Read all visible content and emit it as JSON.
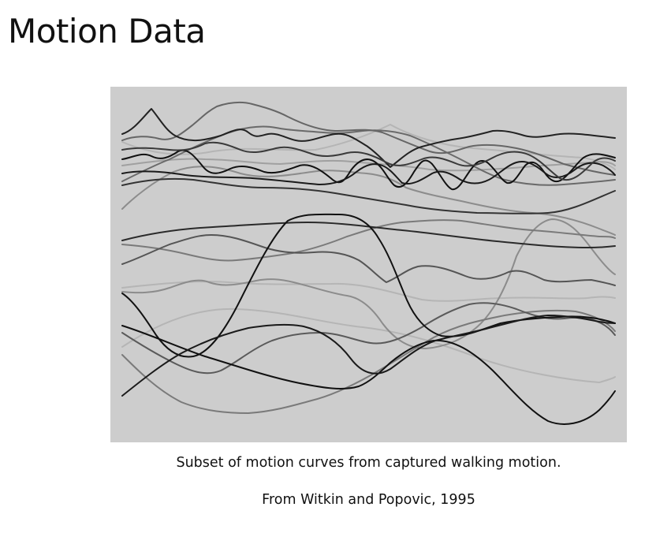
{
  "slide": {
    "title": "Motion Data",
    "caption": "Subset of motion curves from captured walking motion.",
    "credit": "From Witkin and Popovic, 1995"
  },
  "figure": {
    "background": "#cdcdcd",
    "curve_colors": [
      "#111111",
      "#2a2a2a",
      "#555555",
      "#7a7a7a",
      "#9a9a9a",
      "#b5b5b5"
    ]
  }
}
